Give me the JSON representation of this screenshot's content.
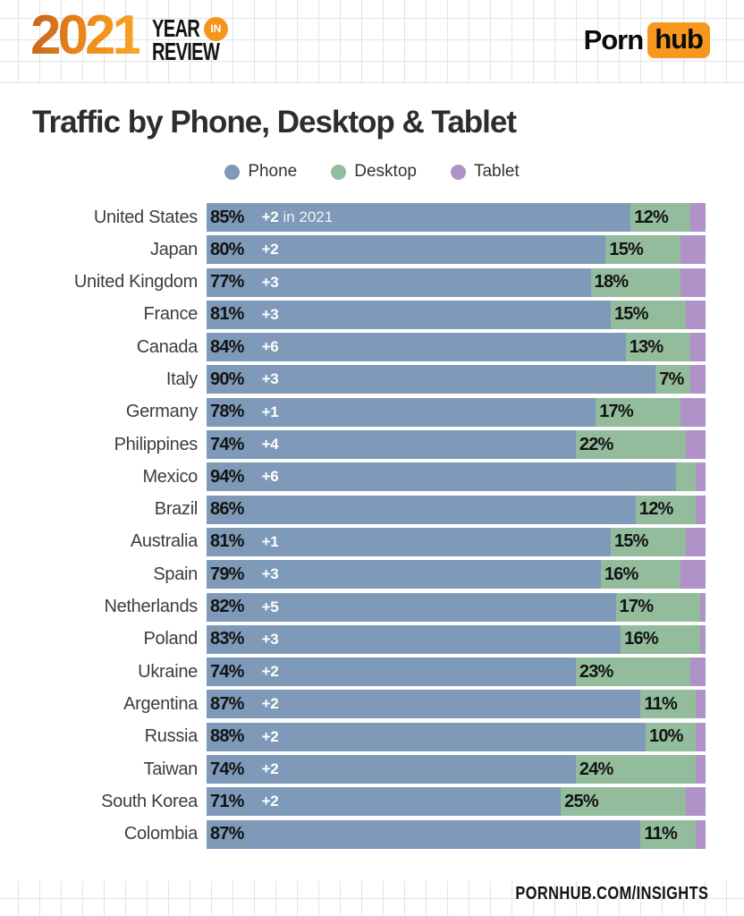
{
  "header": {
    "year": "2021",
    "lockup_line1": "YEAR",
    "lockup_in": "IN",
    "lockup_line2": "REVIEW",
    "brand_porn": "Porn",
    "brand_hub": "hub"
  },
  "title": "Traffic by Phone, Desktop & Tablet",
  "legend": [
    {
      "label": "Phone",
      "color": "#7e9ab8"
    },
    {
      "label": "Desktop",
      "color": "#93bc9d"
    },
    {
      "label": "Tablet",
      "color": "#b092c9"
    }
  ],
  "footer": "PORNHUB.COM/INSIGHTS",
  "colors": {
    "phone": "#7e9ab8",
    "desktop": "#93bc9d",
    "tablet": "#b092c9",
    "brand_orange": "#f7971d"
  },
  "chart_data": {
    "type": "bar",
    "orientation": "horizontal",
    "stacked": true,
    "unit": "%",
    "title": "Traffic by Phone, Desktop & Tablet",
    "series_names": [
      "Phone",
      "Desktop",
      "Tablet"
    ],
    "xlim": [
      0,
      100
    ],
    "first_row_note": "in 2021",
    "rows": [
      {
        "country": "United States",
        "phone": 85,
        "desktop": 12,
        "tablet": 3,
        "change": "+2",
        "change_note": "in 2021",
        "desktop_label": true
      },
      {
        "country": "Japan",
        "phone": 80,
        "desktop": 15,
        "tablet": 5,
        "change": "+2",
        "desktop_label": true
      },
      {
        "country": "United Kingdom",
        "phone": 77,
        "desktop": 18,
        "tablet": 5,
        "change": "+3",
        "desktop_label": true
      },
      {
        "country": "France",
        "phone": 81,
        "desktop": 15,
        "tablet": 4,
        "change": "+3",
        "desktop_label": true
      },
      {
        "country": "Canada",
        "phone": 84,
        "desktop": 13,
        "tablet": 3,
        "change": "+6",
        "desktop_label": true
      },
      {
        "country": "Italy",
        "phone": 90,
        "desktop": 7,
        "tablet": 3,
        "change": "+3",
        "desktop_label": true
      },
      {
        "country": "Germany",
        "phone": 78,
        "desktop": 17,
        "tablet": 5,
        "change": "+1",
        "desktop_label": true
      },
      {
        "country": "Philippines",
        "phone": 74,
        "desktop": 22,
        "tablet": 4,
        "change": "+4",
        "desktop_label": true
      },
      {
        "country": "Mexico",
        "phone": 94,
        "desktop": 4,
        "tablet": 2,
        "change": "+6",
        "desktop_label": false
      },
      {
        "country": "Brazil",
        "phone": 86,
        "desktop": 12,
        "tablet": 2,
        "change": "",
        "desktop_label": true
      },
      {
        "country": "Australia",
        "phone": 81,
        "desktop": 15,
        "tablet": 4,
        "change": "+1",
        "desktop_label": true
      },
      {
        "country": "Spain",
        "phone": 79,
        "desktop": 16,
        "tablet": 5,
        "change": "+3",
        "desktop_label": true
      },
      {
        "country": "Netherlands",
        "phone": 82,
        "desktop": 17,
        "tablet": 1,
        "change": "+5",
        "desktop_label": true
      },
      {
        "country": "Poland",
        "phone": 83,
        "desktop": 16,
        "tablet": 1,
        "change": "+3",
        "desktop_label": true
      },
      {
        "country": "Ukraine",
        "phone": 74,
        "desktop": 23,
        "tablet": 3,
        "change": "+2",
        "desktop_label": true
      },
      {
        "country": "Argentina",
        "phone": 87,
        "desktop": 11,
        "tablet": 2,
        "change": "+2",
        "desktop_label": true
      },
      {
        "country": "Russia",
        "phone": 88,
        "desktop": 10,
        "tablet": 2,
        "change": "+2",
        "desktop_label": true
      },
      {
        "country": "Taiwan",
        "phone": 74,
        "desktop": 24,
        "tablet": 2,
        "change": "+2",
        "desktop_label": true
      },
      {
        "country": "South Korea",
        "phone": 71,
        "desktop": 25,
        "tablet": 4,
        "change": "+2",
        "desktop_label": true
      },
      {
        "country": "Colombia",
        "phone": 87,
        "desktop": 11,
        "tablet": 2,
        "change": "",
        "desktop_label": true
      }
    ]
  }
}
